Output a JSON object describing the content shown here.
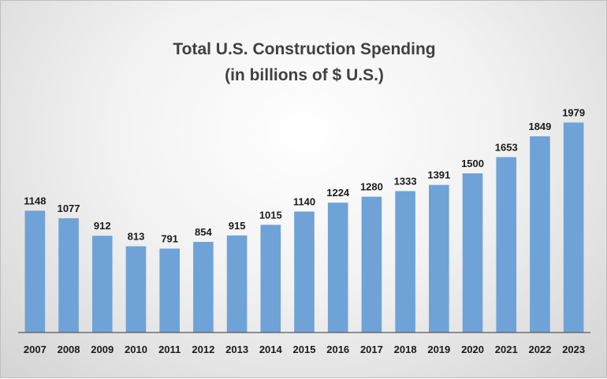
{
  "chart_data": {
    "type": "bar",
    "title": [
      "Total U.S. Construction Spending",
      "(in billions of $ U.S.)"
    ],
    "categories": [
      "2007",
      "2008",
      "2009",
      "2010",
      "2011",
      "2012",
      "2013",
      "2014",
      "2015",
      "2016",
      "2017",
      "2018",
      "2019",
      "2020",
      "2021",
      "2022",
      "2023"
    ],
    "series": [
      {
        "values": [
          1148,
          1077,
          912,
          813,
          791,
          854,
          915,
          1015,
          1140,
          1224,
          1280,
          1333,
          1391,
          1500,
          1653,
          1849,
          1979
        ]
      }
    ],
    "ylim": [
      0,
      2250
    ],
    "grid": false,
    "legend": "none",
    "bar_color": "#6fa3d8",
    "axis_color": "#595959"
  }
}
